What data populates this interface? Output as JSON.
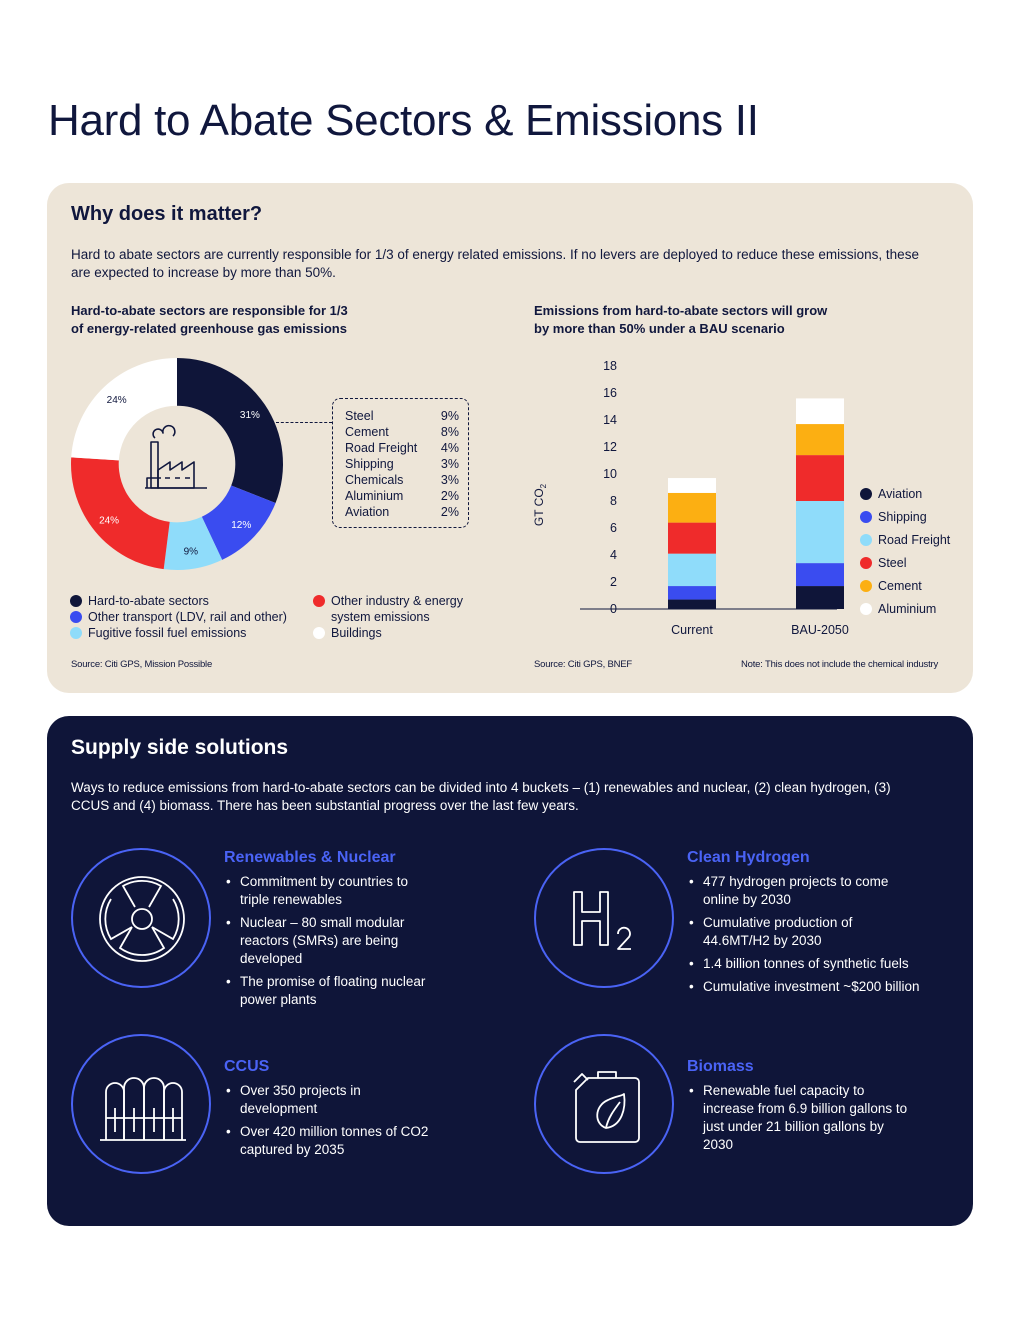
{
  "page": {
    "title": "Hard to Abate Sectors & Emissions II"
  },
  "why": {
    "heading": "Why does it matter?",
    "intro": "Hard to abate sectors are currently responsible for 1/3 of energy related emissions. If no levers are deployed to reduce these emissions, these are expected to increase by more than 50%.",
    "left_title_1": "Hard-to-abate sectors are responsible for 1/3",
    "left_title_2": "of energy-related greenhouse gas emissions",
    "right_title_1": "Emissions from hard-to-abate sectors will grow",
    "right_title_2": "by more than 50% under a BAU scenario",
    "source_left": "Source: Citi GPS, Mission Possible",
    "source_right": "Source: Citi GPS, BNEF",
    "note_right": "Note: This does not include the chemical industry",
    "callout": [
      {
        "name": "Steel",
        "value": "9%"
      },
      {
        "name": "Cement",
        "value": "8%"
      },
      {
        "name": "Road Freight",
        "value": "4%"
      },
      {
        "name": "Shipping",
        "value": "3%"
      },
      {
        "name": "Chemicals",
        "value": "3%"
      },
      {
        "name": "Aluminium",
        "value": "2%"
      },
      {
        "name": "Aviation",
        "value": "2%"
      }
    ],
    "donut_legend": [
      {
        "label": "Hard-to-abate sectors",
        "color": "#0f1539"
      },
      {
        "label": "Other transport (LDV, rail and other)",
        "color": "#3a4cf0"
      },
      {
        "label": "Fugitive fossil fuel emissions",
        "color": "#8fdcfa"
      },
      {
        "label": "Other industry & energy",
        "label2": "system emissions",
        "color": "#ef2b2b"
      },
      {
        "label": "Buildings",
        "color": "#ffffff"
      }
    ],
    "bar_legend": [
      {
        "label": "Aviation",
        "color": "#0f1539"
      },
      {
        "label": "Shipping",
        "color": "#3a4cf0"
      },
      {
        "label": "Road Freight",
        "color": "#8fdcfa"
      },
      {
        "label": "Steel",
        "color": "#ef2b2b"
      },
      {
        "label": "Cement",
        "color": "#fcaf12"
      },
      {
        "label": "Aluminium",
        "color": "#ffffff"
      }
    ]
  },
  "chart_data": [
    {
      "type": "pie",
      "categories": [
        "Hard-to-abate sectors",
        "Other transport (LDV, rail and other)",
        "Fugitive fossil fuel emissions",
        "Other industry & energy system emissions",
        "Buildings"
      ],
      "values": [
        31,
        12,
        9,
        24,
        24
      ],
      "labels": [
        "31%",
        "12%",
        "9%",
        "24%",
        "24%"
      ],
      "colors": [
        "#0f1539",
        "#3a4cf0",
        "#8fdcfa",
        "#ef2b2b",
        "#ffffff"
      ],
      "hole": 0.55,
      "legend": "bottom"
    },
    {
      "type": "bar",
      "stacked": true,
      "categories": [
        "Current",
        "BAU-2050"
      ],
      "series": [
        {
          "name": "Aviation",
          "color": "#0f1539",
          "values": [
            0.7,
            1.7
          ]
        },
        {
          "name": "Shipping",
          "color": "#3a4cf0",
          "values": [
            1.0,
            1.7
          ]
        },
        {
          "name": "Road Freight",
          "color": "#8fdcfa",
          "values": [
            2.4,
            4.6
          ]
        },
        {
          "name": "Steel",
          "color": "#ef2b2b",
          "values": [
            2.3,
            3.4
          ]
        },
        {
          "name": "Cement",
          "color": "#fcaf12",
          "values": [
            2.2,
            2.3
          ]
        },
        {
          "name": "Aluminium",
          "color": "#ffffff",
          "values": [
            1.1,
            1.9
          ]
        }
      ],
      "ylabel": "GT CO",
      "ylabel_sub": "2",
      "ylim": [
        0,
        18
      ],
      "yticks": [
        "0",
        "2",
        "4",
        "6",
        "8",
        "10",
        "12",
        "14",
        "16",
        "18"
      ],
      "grid": false,
      "legend": "right"
    }
  ],
  "supply": {
    "heading": "Supply side solutions",
    "intro": "Ways to reduce emissions from hard-to-abate sectors can be divided into 4 buckets – (1) renewables and nuclear, (2) clean hydrogen, (3) CCUS and (4) biomass. There has been substantial progress over the last few years.",
    "solutions": [
      {
        "title": "Renewables & Nuclear",
        "icon": "radiation-icon",
        "points": [
          "Commitment by countries to triple renewables",
          "Nuclear – 80 small modular reactors (SMRs) are being developed",
          "The promise of floating nuclear power plants"
        ]
      },
      {
        "title": "Clean Hydrogen",
        "icon": "hydrogen-h2-icon",
        "points": [
          "477 hydrogen projects to come online by 2030",
          "Cumulative production of 44.6MT/H2 by 2030",
          "1.4 billion tonnes of synthetic fuels",
          "Cumulative investment ~$200 billion"
        ]
      },
      {
        "title": "CCUS",
        "icon": "storage-tanks-icon",
        "points": [
          "Over 350 projects in development",
          "Over 420 million tonnes of CO2 captured by 2035"
        ]
      },
      {
        "title": "Biomass",
        "icon": "fuel-can-leaf-icon",
        "points": [
          "Renewable fuel capacity to increase from 6.9 billion gallons to just under 21 billion gallons by 2030"
        ]
      }
    ]
  }
}
